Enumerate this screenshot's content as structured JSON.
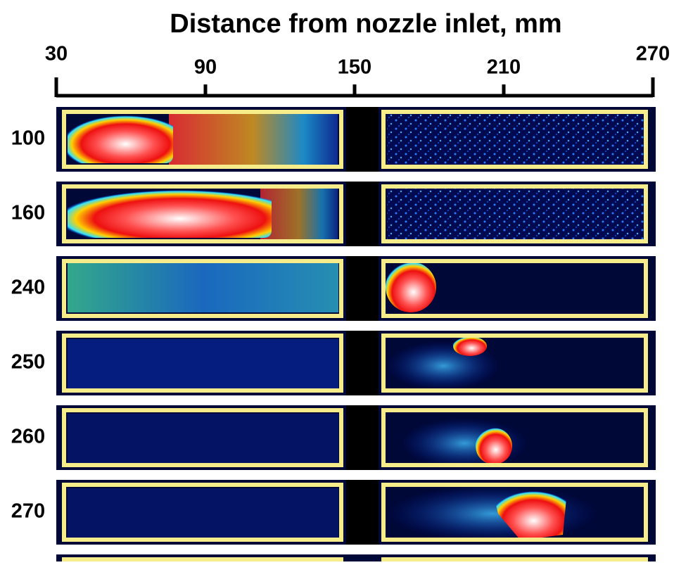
{
  "chart_data": {
    "type": "image-strips",
    "title": "Distance from nozzle inlet, mm",
    "xlim": [
      30,
      270
    ],
    "xticks": [
      30,
      90,
      150,
      210,
      270
    ],
    "categories": [
      "100",
      "160",
      "240",
      "250",
      "260",
      "270"
    ]
  }
}
